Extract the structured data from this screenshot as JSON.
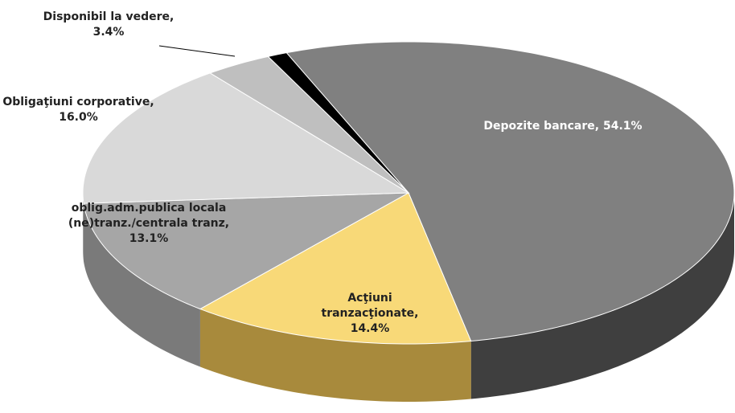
{
  "chart_data": {
    "type": "pie3d",
    "categories": [
      "Depozite bancare",
      "Acţiuni tranzacţionate",
      "oblig.adm.publica locala (ne)tranz./centrala tranz",
      "Obligaţiuni corporative",
      "Disponibil la vedere",
      null
    ],
    "values": [
      54.1,
      14.4,
      13.1,
      16.0,
      3.4,
      1
    ],
    "value_labels": [
      "54.1%",
      "14.4%",
      "13.1%",
      "16.0%",
      "3.4%",
      null
    ],
    "label_separator": ",",
    "colors": [
      "#808080",
      "#f8d978",
      "#a6a6a6",
      "#d9d9d9",
      "#bfbfbf",
      "#000000"
    ],
    "side_colors": [
      "#3f3f3f",
      "#a88a3c",
      "#7a7a7a",
      "#9c9c9c",
      "#8c8c8c",
      "#000000"
    ]
  }
}
